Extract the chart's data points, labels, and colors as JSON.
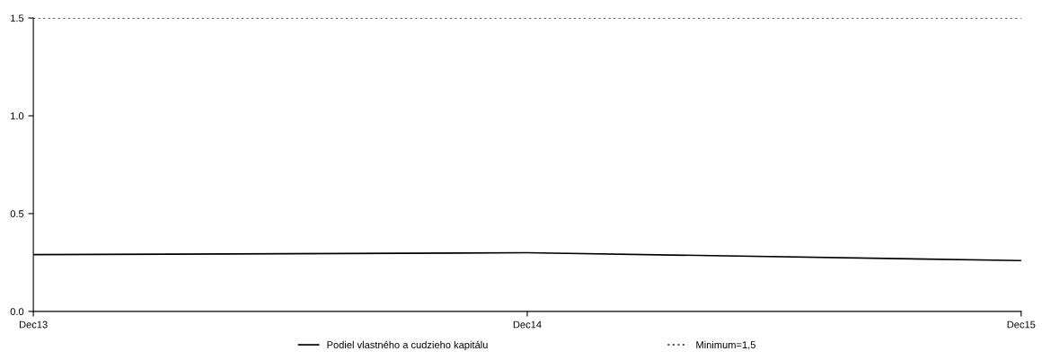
{
  "chart_data": {
    "type": "line",
    "categories": [
      "Dec13",
      "Dec14",
      "Dec15"
    ],
    "series": [
      {
        "name": "Podiel vlastného a cudzieho kapitálu",
        "color": "#000000",
        "values": [
          0.29,
          0.3,
          0.26
        ]
      }
    ],
    "ylim": [
      0,
      1.5
    ],
    "yticks": [
      {
        "value": 0,
        "label": "0.0"
      },
      {
        "value": 0.5,
        "label": "0.5"
      },
      {
        "value": 1.0,
        "label": "1.0"
      },
      {
        "value": 1.5,
        "label": "1.5"
      }
    ],
    "ref_lines": [
      {
        "axis": "y",
        "value": 1.5,
        "label": "Minimum=1,5",
        "color": "#555555",
        "line_style": "dotted"
      }
    ],
    "grid": false,
    "legend": "bottom",
    "marker": "none",
    "line_style": "solid"
  }
}
